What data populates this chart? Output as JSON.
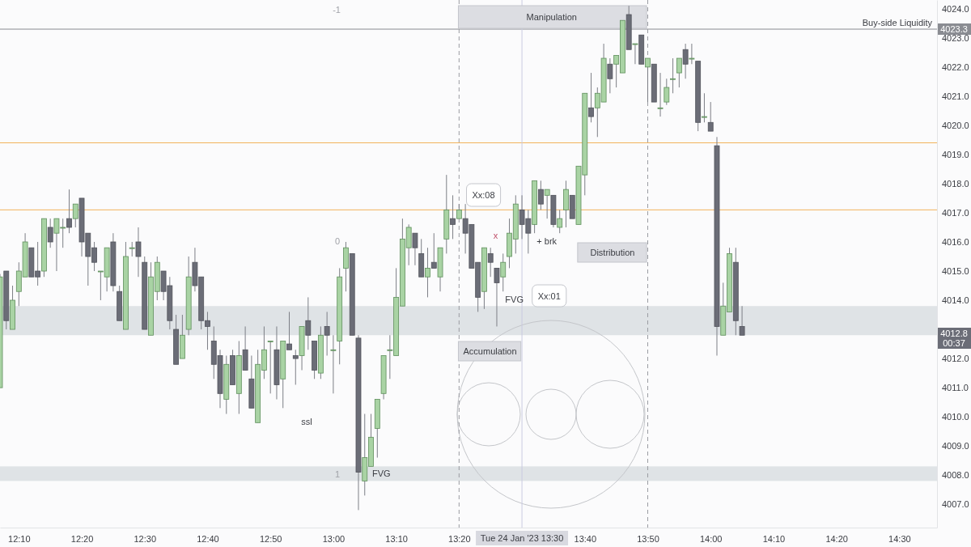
{
  "chart_data": {
    "type": "candlestick",
    "x": [
      "2023-01-24T12:07",
      "2023-01-24T12:08",
      "2023-01-24T12:09",
      "2023-01-24T12:10",
      "2023-01-24T12:11",
      "2023-01-24T12:12",
      "2023-01-24T12:13",
      "2023-01-24T12:14",
      "2023-01-24T12:15",
      "2023-01-24T12:16",
      "2023-01-24T12:17",
      "2023-01-24T12:18",
      "2023-01-24T12:19",
      "2023-01-24T12:20",
      "2023-01-24T12:21",
      "2023-01-24T12:22",
      "2023-01-24T12:23",
      "2023-01-24T12:24",
      "2023-01-24T12:25",
      "2023-01-24T12:26",
      "2023-01-24T12:27",
      "2023-01-24T12:28",
      "2023-01-24T12:29",
      "2023-01-24T12:30",
      "2023-01-24T12:31",
      "2023-01-24T12:32",
      "2023-01-24T12:33",
      "2023-01-24T12:34",
      "2023-01-24T12:35",
      "2023-01-24T12:36",
      "2023-01-24T12:37",
      "2023-01-24T12:38",
      "2023-01-24T12:39",
      "2023-01-24T12:40",
      "2023-01-24T12:41",
      "2023-01-24T12:42",
      "2023-01-24T12:43",
      "2023-01-24T12:44",
      "2023-01-24T12:45",
      "2023-01-24T12:46",
      "2023-01-24T12:47",
      "2023-01-24T12:48",
      "2023-01-24T12:49",
      "2023-01-24T12:50",
      "2023-01-24T12:51",
      "2023-01-24T12:52",
      "2023-01-24T12:53",
      "2023-01-24T12:54",
      "2023-01-24T12:55",
      "2023-01-24T12:56",
      "2023-01-24T12:57",
      "2023-01-24T12:58",
      "2023-01-24T12:59",
      "2023-01-24T13:00",
      "2023-01-24T13:01",
      "2023-01-24T13:02",
      "2023-01-24T13:03",
      "2023-01-24T13:04",
      "2023-01-24T13:05",
      "2023-01-24T13:06",
      "2023-01-24T13:07",
      "2023-01-24T13:08",
      "2023-01-24T13:09",
      "2023-01-24T13:10",
      "2023-01-24T13:11",
      "2023-01-24T13:12",
      "2023-01-24T13:13",
      "2023-01-24T13:14",
      "2023-01-24T13:15",
      "2023-01-24T13:16",
      "2023-01-24T13:17",
      "2023-01-24T13:18",
      "2023-01-24T13:19",
      "2023-01-24T13:20",
      "2023-01-24T13:21",
      "2023-01-24T13:22",
      "2023-01-24T13:23",
      "2023-01-24T13:24",
      "2023-01-24T13:25",
      "2023-01-24T13:26",
      "2023-01-24T13:27",
      "2023-01-24T13:28",
      "2023-01-24T13:29",
      "2023-01-24T13:30",
      "2023-01-24T13:31",
      "2023-01-24T13:32",
      "2023-01-24T13:33",
      "2023-01-24T13:34",
      "2023-01-24T13:35",
      "2023-01-24T13:36",
      "2023-01-24T13:37",
      "2023-01-24T13:38",
      "2023-01-24T13:39",
      "2023-01-24T13:40",
      "2023-01-24T13:41",
      "2023-01-24T13:42",
      "2023-01-24T13:43",
      "2023-01-24T13:44",
      "2023-01-24T13:45",
      "2023-01-24T13:46",
      "2023-01-24T13:47",
      "2023-01-24T13:48",
      "2023-01-24T13:49",
      "2023-01-24T13:50",
      "2023-01-24T13:51",
      "2023-01-24T13:52",
      "2023-01-24T13:53",
      "2023-01-24T13:54",
      "2023-01-24T13:55",
      "2023-01-24T13:56",
      "2023-01-24T13:57",
      "2023-01-24T13:58",
      "2023-01-24T13:59",
      "2023-01-24T14:00",
      "2023-01-24T14:01",
      "2023-01-24T14:02",
      "2023-01-24T14:03",
      "2023-01-24T14:04",
      "2023-01-24T14:05"
    ],
    "ohlc": [
      [
        4011.0,
        4014.9,
        4011.0,
        4014.8
      ],
      [
        4015.0,
        4015.0,
        4013.0,
        4013.3
      ],
      [
        4013.0,
        4014.5,
        4013.0,
        4014.0
      ],
      [
        4014.3,
        4015.3,
        4013.8,
        4015.0
      ],
      [
        4014.8,
        4016.3,
        4014.8,
        4016.0
      ],
      [
        4015.8,
        4015.8,
        4014.8,
        4014.8
      ],
      [
        4015.0,
        4016.0,
        4014.5,
        4014.8
      ],
      [
        4015.0,
        4016.8,
        4014.8,
        4016.8
      ],
      [
        4016.5,
        4016.8,
        4015.8,
        4016.0
      ],
      [
        4016.3,
        4016.8,
        4015.0,
        4016.8
      ],
      [
        4016.5,
        4016.8,
        4015.8,
        4016.5
      ],
      [
        4016.8,
        4017.8,
        4016.3,
        4016.5
      ],
      [
        4016.8,
        4017.3,
        4016.5,
        4017.3
      ],
      [
        4017.5,
        4017.5,
        4015.5,
        4016.0
      ],
      [
        4016.3,
        4016.3,
        4014.5,
        4015.5
      ],
      [
        4015.8,
        4016.0,
        4015.0,
        4015.3
      ],
      [
        4015.0,
        4015.0,
        4014.0,
        4015.0
      ],
      [
        4014.8,
        4015.8,
        4014.3,
        4015.8
      ],
      [
        4016.0,
        4016.3,
        4014.3,
        4014.5
      ],
      [
        4014.3,
        4014.5,
        4013.3,
        4013.3
      ],
      [
        4013.0,
        4016.0,
        4013.0,
        4015.5
      ],
      [
        4015.8,
        4016.0,
        4015.5,
        4015.8
      ],
      [
        4016.0,
        4016.5,
        4014.8,
        4015.5
      ],
      [
        4015.3,
        4015.5,
        4013.0,
        4013.0
      ],
      [
        4012.8,
        4015.3,
        4012.8,
        4014.8
      ],
      [
        4014.3,
        4015.5,
        4014.0,
        4015.3
      ],
      [
        4015.0,
        4015.0,
        4014.0,
        4014.3
      ],
      [
        4014.5,
        4014.8,
        4013.0,
        4013.3
      ],
      [
        4013.0,
        4013.5,
        4011.8,
        4011.8
      ],
      [
        4012.0,
        4013.5,
        4012.0,
        4012.8
      ],
      [
        4013.0,
        4015.5,
        4012.8,
        4014.8
      ],
      [
        4015.3,
        4015.8,
        4014.3,
        4014.5
      ],
      [
        4014.8,
        4014.8,
        4013.0,
        4013.3
      ],
      [
        4013.3,
        4013.6,
        4012.3,
        4013.1
      ],
      [
        4012.6,
        4013.1,
        4011.3,
        4011.8
      ],
      [
        4012.1,
        4012.3,
        4010.3,
        4010.8
      ],
      [
        4010.6,
        4012.1,
        4010.1,
        4011.8
      ],
      [
        4012.1,
        4012.3,
        4011.1,
        4011.1
      ],
      [
        4010.8,
        4012.6,
        4010.1,
        4012.1
      ],
      [
        4012.3,
        4013.1,
        4011.6,
        4011.6
      ],
      [
        4011.3,
        4012.1,
        4010.3,
        4010.3
      ],
      [
        4009.8,
        4012.3,
        4009.8,
        4011.8
      ],
      [
        4011.6,
        4013.1,
        4011.3,
        4012.3
      ],
      [
        4012.6,
        4012.6,
        4010.8,
        4012.6
      ],
      [
        4012.3,
        4013.1,
        4010.6,
        4011.1
      ],
      [
        4011.3,
        4012.6,
        4010.3,
        4012.6
      ],
      [
        4012.5,
        4013.6,
        4012.3,
        4012.3
      ],
      [
        4012.1,
        4012.3,
        4011.1,
        4012.0
      ],
      [
        4012.1,
        4013.1,
        4011.6,
        4013.1
      ],
      [
        4013.3,
        4014.1,
        4012.3,
        4012.8
      ],
      [
        4012.6,
        4012.6,
        4011.3,
        4011.6
      ],
      [
        4011.5,
        4013.1,
        4011.3,
        4012.8
      ],
      [
        4013.1,
        4013.6,
        4012.1,
        4012.8
      ],
      [
        4012.3,
        4012.8,
        4010.8,
        4012.3
      ],
      [
        4012.6,
        4015.1,
        4011.8,
        4014.8
      ],
      [
        4015.1,
        4016.0,
        4014.3,
        4015.8
      ],
      [
        4015.6,
        4015.6,
        4012.8,
        4012.8
      ],
      [
        4012.7,
        4012.8,
        4006.8,
        4008.1
      ],
      [
        4007.8,
        4010.1,
        4007.3,
        4008.6
      ],
      [
        4008.3,
        4010.1,
        4008.3,
        4009.3
      ],
      [
        4009.6,
        4010.6,
        4008.6,
        4010.6
      ],
      [
        4010.8,
        4012.1,
        4010.6,
        4012.1
      ],
      [
        4012.3,
        4012.8,
        4011.3,
        4012.3
      ],
      [
        4012.1,
        4015.1,
        4012.1,
        4014.1
      ],
      [
        4013.8,
        4016.8,
        4013.8,
        4016.1
      ],
      [
        4015.8,
        4016.6,
        4015.2,
        4016.5
      ],
      [
        4016.3,
        4016.3,
        4015.2,
        4015.8
      ],
      [
        4015.6,
        4016.1,
        4014.8,
        4014.8
      ],
      [
        4014.8,
        4015.8,
        4014.1,
        4015.1
      ],
      [
        4015.3,
        4016.3,
        4015.1,
        4015.1
      ],
      [
        4014.8,
        4015.8,
        4014.3,
        4015.8
      ],
      [
        4016.1,
        4018.3,
        4015.6,
        4017.1
      ],
      [
        4016.8,
        4017.6,
        4016.1,
        4016.6
      ],
      [
        4016.8,
        4017.3,
        4016.8,
        4017.1
      ],
      [
        4016.8,
        4017.3,
        4015.6,
        4016.3
      ],
      [
        4016.6,
        4016.6,
        4015.1,
        4015.1
      ],
      [
        4015.3,
        4015.3,
        4013.6,
        4014.1
      ],
      [
        4014.3,
        4015.8,
        4013.7,
        4015.8
      ],
      [
        4015.6,
        4015.8,
        4014.8,
        4015.3
      ],
      [
        4015.1,
        4015.1,
        4013.1,
        4014.6
      ],
      [
        4014.8,
        4015.6,
        4014.3,
        4015.3
      ],
      [
        4015.5,
        4016.8,
        4015.1,
        4016.3
      ],
      [
        4016.1,
        4017.6,
        4015.6,
        4017.3
      ],
      [
        4017.1,
        4017.6,
        4016.1,
        4016.6
      ],
      [
        4016.8,
        4017.1,
        4015.6,
        4016.3
      ],
      [
        4016.6,
        4018.1,
        4016.3,
        4018.1
      ],
      [
        4017.8,
        4018.1,
        4017.1,
        4017.3
      ],
      [
        4017.6,
        4017.8,
        4016.8,
        4017.8
      ],
      [
        4017.6,
        4017.6,
        4016.5,
        4016.6
      ],
      [
        4016.5,
        4017.1,
        4016.3,
        4016.8
      ],
      [
        4017.1,
        4018.1,
        4016.5,
        4017.8
      ],
      [
        4017.6,
        4017.6,
        4016.8,
        4016.8
      ],
      [
        4016.6,
        4018.6,
        4016.6,
        4018.6
      ],
      [
        4018.3,
        4021.1,
        4017.6,
        4021.1
      ],
      [
        4020.6,
        4021.8,
        4020.1,
        4020.3
      ],
      [
        4020.6,
        4021.3,
        4019.6,
        4021.1
      ],
      [
        4020.8,
        4022.8,
        4020.8,
        4022.3
      ],
      [
        4022.1,
        4022.3,
        4021.1,
        4021.6
      ],
      [
        4022.1,
        4022.4,
        4021.3,
        4022.4
      ],
      [
        4021.8,
        4023.6,
        4021.8,
        4023.6
      ],
      [
        4023.8,
        4024.1,
        4022.6,
        4022.6
      ],
      [
        4022.8,
        4022.8,
        4022.1,
        4022.8
      ],
      [
        4023.1,
        4023.1,
        4022.1,
        4022.1
      ],
      [
        4022.0,
        4022.3,
        4020.8,
        4022.3
      ],
      [
        4022.1,
        4022.1,
        4020.8,
        4020.8
      ],
      [
        4020.6,
        4021.8,
        4020.3,
        4020.6
      ],
      [
        4020.8,
        4021.6,
        4020.7,
        4021.3
      ],
      [
        4021.6,
        4022.3,
        4021.1,
        4021.6
      ],
      [
        4021.8,
        4022.3,
        4021.3,
        4022.3
      ],
      [
        4022.6,
        4022.8,
        4021.6,
        4022.1
      ],
      [
        4022.3,
        4022.8,
        4022.1,
        4022.3
      ],
      [
        4022.2,
        4022.2,
        4019.8,
        4020.1
      ],
      [
        4020.3,
        4021.1,
        4020.1,
        4020.3
      ],
      [
        4020.1,
        4020.8,
        4019.8,
        4019.8
      ],
      [
        4019.3,
        4019.6,
        4012.1,
        4013.1
      ],
      [
        4012.8,
        4014.6,
        4012.8,
        4013.8
      ],
      [
        4013.6,
        4015.8,
        4013.6,
        4015.6
      ],
      [
        4015.3,
        4015.8,
        4012.8,
        4013.3
      ],
      [
        4013.1,
        4013.8,
        4012.8,
        4012.8
      ]
    ],
    "xlim": [
      "2023-01-24T12:07",
      "2023-01-24T14:36"
    ],
    "xticks": [
      {
        "value": "2023-01-24T12:10",
        "label": "12:10"
      },
      {
        "value": "2023-01-24T12:20",
        "label": "12:20"
      },
      {
        "value": "2023-01-24T12:30",
        "label": "12:30"
      },
      {
        "value": "2023-01-24T12:40",
        "label": "12:40"
      },
      {
        "value": "2023-01-24T12:50",
        "label": "12:50"
      },
      {
        "value": "2023-01-24T13:00",
        "label": "13:00"
      },
      {
        "value": "2023-01-24T13:10",
        "label": "13:10"
      },
      {
        "value": "2023-01-24T13:20",
        "label": "13:20"
      },
      {
        "value": "2023-01-24T13:40",
        "label": "13:40"
      },
      {
        "value": "2023-01-24T13:50",
        "label": "13:50"
      },
      {
        "value": "2023-01-24T14:00",
        "label": "14:00"
      },
      {
        "value": "2023-01-24T14:10",
        "label": "14:10"
      },
      {
        "value": "2023-01-24T14:20",
        "label": "14:20"
      },
      {
        "value": "2023-01-24T14:30",
        "label": "14:30"
      }
    ],
    "ylim": [
      4006.2,
      4024.3
    ],
    "yticks": [
      {
        "value": 4007,
        "label": "4007.0"
      },
      {
        "value": 4008,
        "label": "4008.0"
      },
      {
        "value": 4009,
        "label": "4009.0"
      },
      {
        "value": 4010,
        "label": "4010.0"
      },
      {
        "value": 4011,
        "label": "4011.0"
      },
      {
        "value": 4012,
        "label": "4012.0"
      },
      {
        "value": 4014,
        "label": "4014.0"
      },
      {
        "value": 4015,
        "label": "4015.0"
      },
      {
        "value": 4016,
        "label": "4016.0"
      },
      {
        "value": 4017,
        "label": "4017.0"
      },
      {
        "value": 4018,
        "label": "4018.0"
      },
      {
        "value": 4019,
        "label": "4019.0"
      },
      {
        "value": 4020,
        "label": "4020.0"
      },
      {
        "value": 4021,
        "label": "4021.0"
      },
      {
        "value": 4022,
        "label": "4022.0"
      },
      {
        "value": 4023,
        "label": "4023.0"
      },
      {
        "value": 4024,
        "label": "4024.0"
      }
    ],
    "ref_lines": [
      {
        "axis": "y",
        "value": 4023.3,
        "label": "Buy-side Liquidity",
        "color": "#8a8c92"
      },
      {
        "axis": "y",
        "value": 4019.4,
        "color": "#f2b35b"
      },
      {
        "axis": "y",
        "value": 4017.1,
        "color": "#f2b35b"
      },
      {
        "axis": "x",
        "value": "2023-01-24T13:20",
        "color": "#9a9ca2",
        "line_style": "dashed"
      },
      {
        "axis": "x",
        "value": "2023-01-24T13:50",
        "color": "#9a9ca2",
        "line_style": "dashed"
      },
      {
        "axis": "x",
        "value": "2023-01-24T13:30",
        "label": "Tue 24 Jan '23  13:30",
        "color": "#c9cbe0"
      }
    ],
    "bands": [
      {
        "axis": "y",
        "from": 4007.8,
        "to": 4008.3,
        "color": "#dfe3e6"
      },
      {
        "axis": "y",
        "from": 4012.8,
        "to": 4013.8,
        "color": "#dfe3e6"
      }
    ],
    "annotations": [
      "Manipulation",
      "Accumulation",
      "Distribution",
      "Xx:08",
      "Xx:01",
      "4012.8",
      "00:37",
      "4023.3",
      "FVG",
      "FVG",
      "ssl",
      "+ brk",
      "x",
      "0",
      "1",
      "-1"
    ]
  }
}
